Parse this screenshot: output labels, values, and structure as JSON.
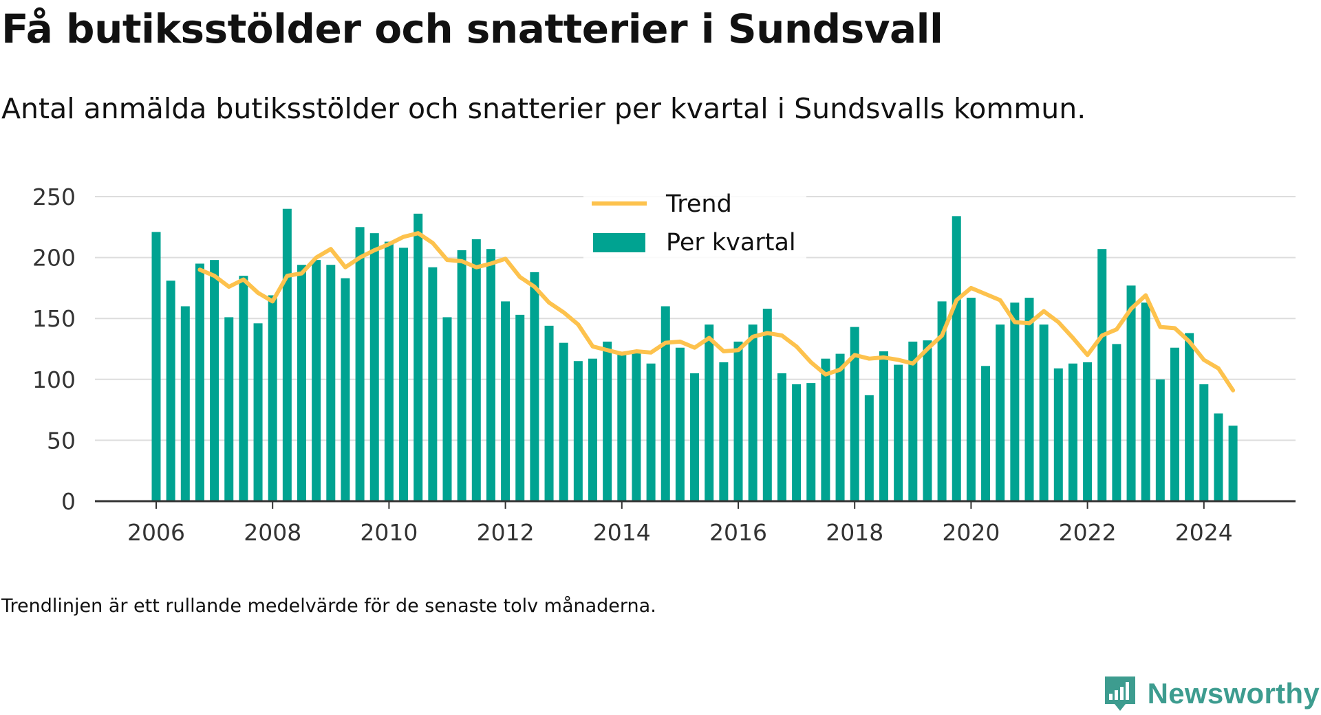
{
  "title": "Få butiksstölder och snatterier i Sundsvall",
  "subtitle": "Antal anmälda butiksstölder och snatterier per kvartal i Sundsvalls kommun.",
  "note": "Trendlinjen är ett rullande medelvärde för de senaste tolv månaderna.",
  "brand": {
    "name": "Newsworthy",
    "logo_icon": "newsworthy-chart-icon"
  },
  "colors": {
    "bars": "#00a391",
    "trend": "#fdc24d",
    "grid": "#dddddd",
    "axis": "#333333",
    "brand": "#3d9c8f"
  },
  "chart_data": {
    "type": "bar",
    "title": "",
    "xlabel": "",
    "ylabel": "",
    "ylim": [
      0,
      250
    ],
    "y_ticks": [
      0,
      50,
      100,
      150,
      200,
      250
    ],
    "x_tick_labels": [
      "2006",
      "2008",
      "2010",
      "2012",
      "2014",
      "2016",
      "2018",
      "2020",
      "2022",
      "2024"
    ],
    "grid": true,
    "legend_position": "top-center",
    "categories": [
      "2006 Q1",
      "2006 Q2",
      "2006 Q3",
      "2006 Q4",
      "2007 Q1",
      "2007 Q2",
      "2007 Q3",
      "2007 Q4",
      "2008 Q1",
      "2008 Q2",
      "2008 Q3",
      "2008 Q4",
      "2009 Q1",
      "2009 Q2",
      "2009 Q3",
      "2009 Q4",
      "2010 Q1",
      "2010 Q2",
      "2010 Q3",
      "2010 Q4",
      "2011 Q1",
      "2011 Q2",
      "2011 Q3",
      "2011 Q4",
      "2012 Q1",
      "2012 Q2",
      "2012 Q3",
      "2012 Q4",
      "2013 Q1",
      "2013 Q2",
      "2013 Q3",
      "2013 Q4",
      "2014 Q1",
      "2014 Q2",
      "2014 Q3",
      "2014 Q4",
      "2015 Q1",
      "2015 Q2",
      "2015 Q3",
      "2015 Q4",
      "2016 Q1",
      "2016 Q2",
      "2016 Q3",
      "2016 Q4",
      "2017 Q1",
      "2017 Q2",
      "2017 Q3",
      "2017 Q4",
      "2018 Q1",
      "2018 Q2",
      "2018 Q3",
      "2018 Q4",
      "2019 Q1",
      "2019 Q2",
      "2019 Q3",
      "2019 Q4",
      "2020 Q1",
      "2020 Q2",
      "2020 Q3",
      "2020 Q4",
      "2021 Q1",
      "2021 Q2",
      "2021 Q3",
      "2021 Q4",
      "2022 Q1",
      "2022 Q2",
      "2022 Q3",
      "2022 Q4",
      "2023 Q1",
      "2023 Q2",
      "2023 Q3",
      "2023 Q4",
      "2024 Q1",
      "2024 Q2",
      "2024 Q3"
    ],
    "series": [
      {
        "name": "Per kvartal",
        "type": "bar",
        "values": [
          221,
          181,
          160,
          195,
          198,
          151,
          185,
          146,
          169,
          240,
          194,
          198,
          194,
          183,
          225,
          220,
          213,
          208,
          236,
          192,
          151,
          206,
          215,
          207,
          164,
          153,
          188,
          144,
          130,
          115,
          117,
          131,
          121,
          122,
          113,
          160,
          126,
          105,
          145,
          114,
          131,
          145,
          158,
          105,
          96,
          97,
          117,
          121,
          143,
          87,
          123,
          112,
          131,
          132,
          164,
          234,
          167,
          111,
          145,
          163,
          167,
          145,
          109,
          113,
          114,
          207,
          129,
          177,
          163,
          100,
          126,
          138,
          96,
          72,
          62
        ]
      },
      {
        "name": "Trend",
        "type": "line",
        "values": [
          null,
          null,
          null,
          190,
          185,
          176,
          182,
          171,
          164,
          185,
          187,
          200,
          207,
          192,
          200,
          206,
          211,
          217,
          220,
          212,
          198,
          197,
          192,
          195,
          199,
          184,
          176,
          163,
          155,
          145,
          127,
          124,
          121,
          123,
          122,
          130,
          131,
          126,
          134,
          123,
          124,
          135,
          138,
          136,
          127,
          114,
          104,
          108,
          120,
          117,
          118,
          116,
          113,
          125,
          136,
          165,
          175,
          170,
          165,
          147,
          146,
          156,
          147,
          134,
          120,
          136,
          141,
          158,
          169,
          143,
          142,
          131,
          116,
          109,
          91
        ]
      }
    ]
  }
}
